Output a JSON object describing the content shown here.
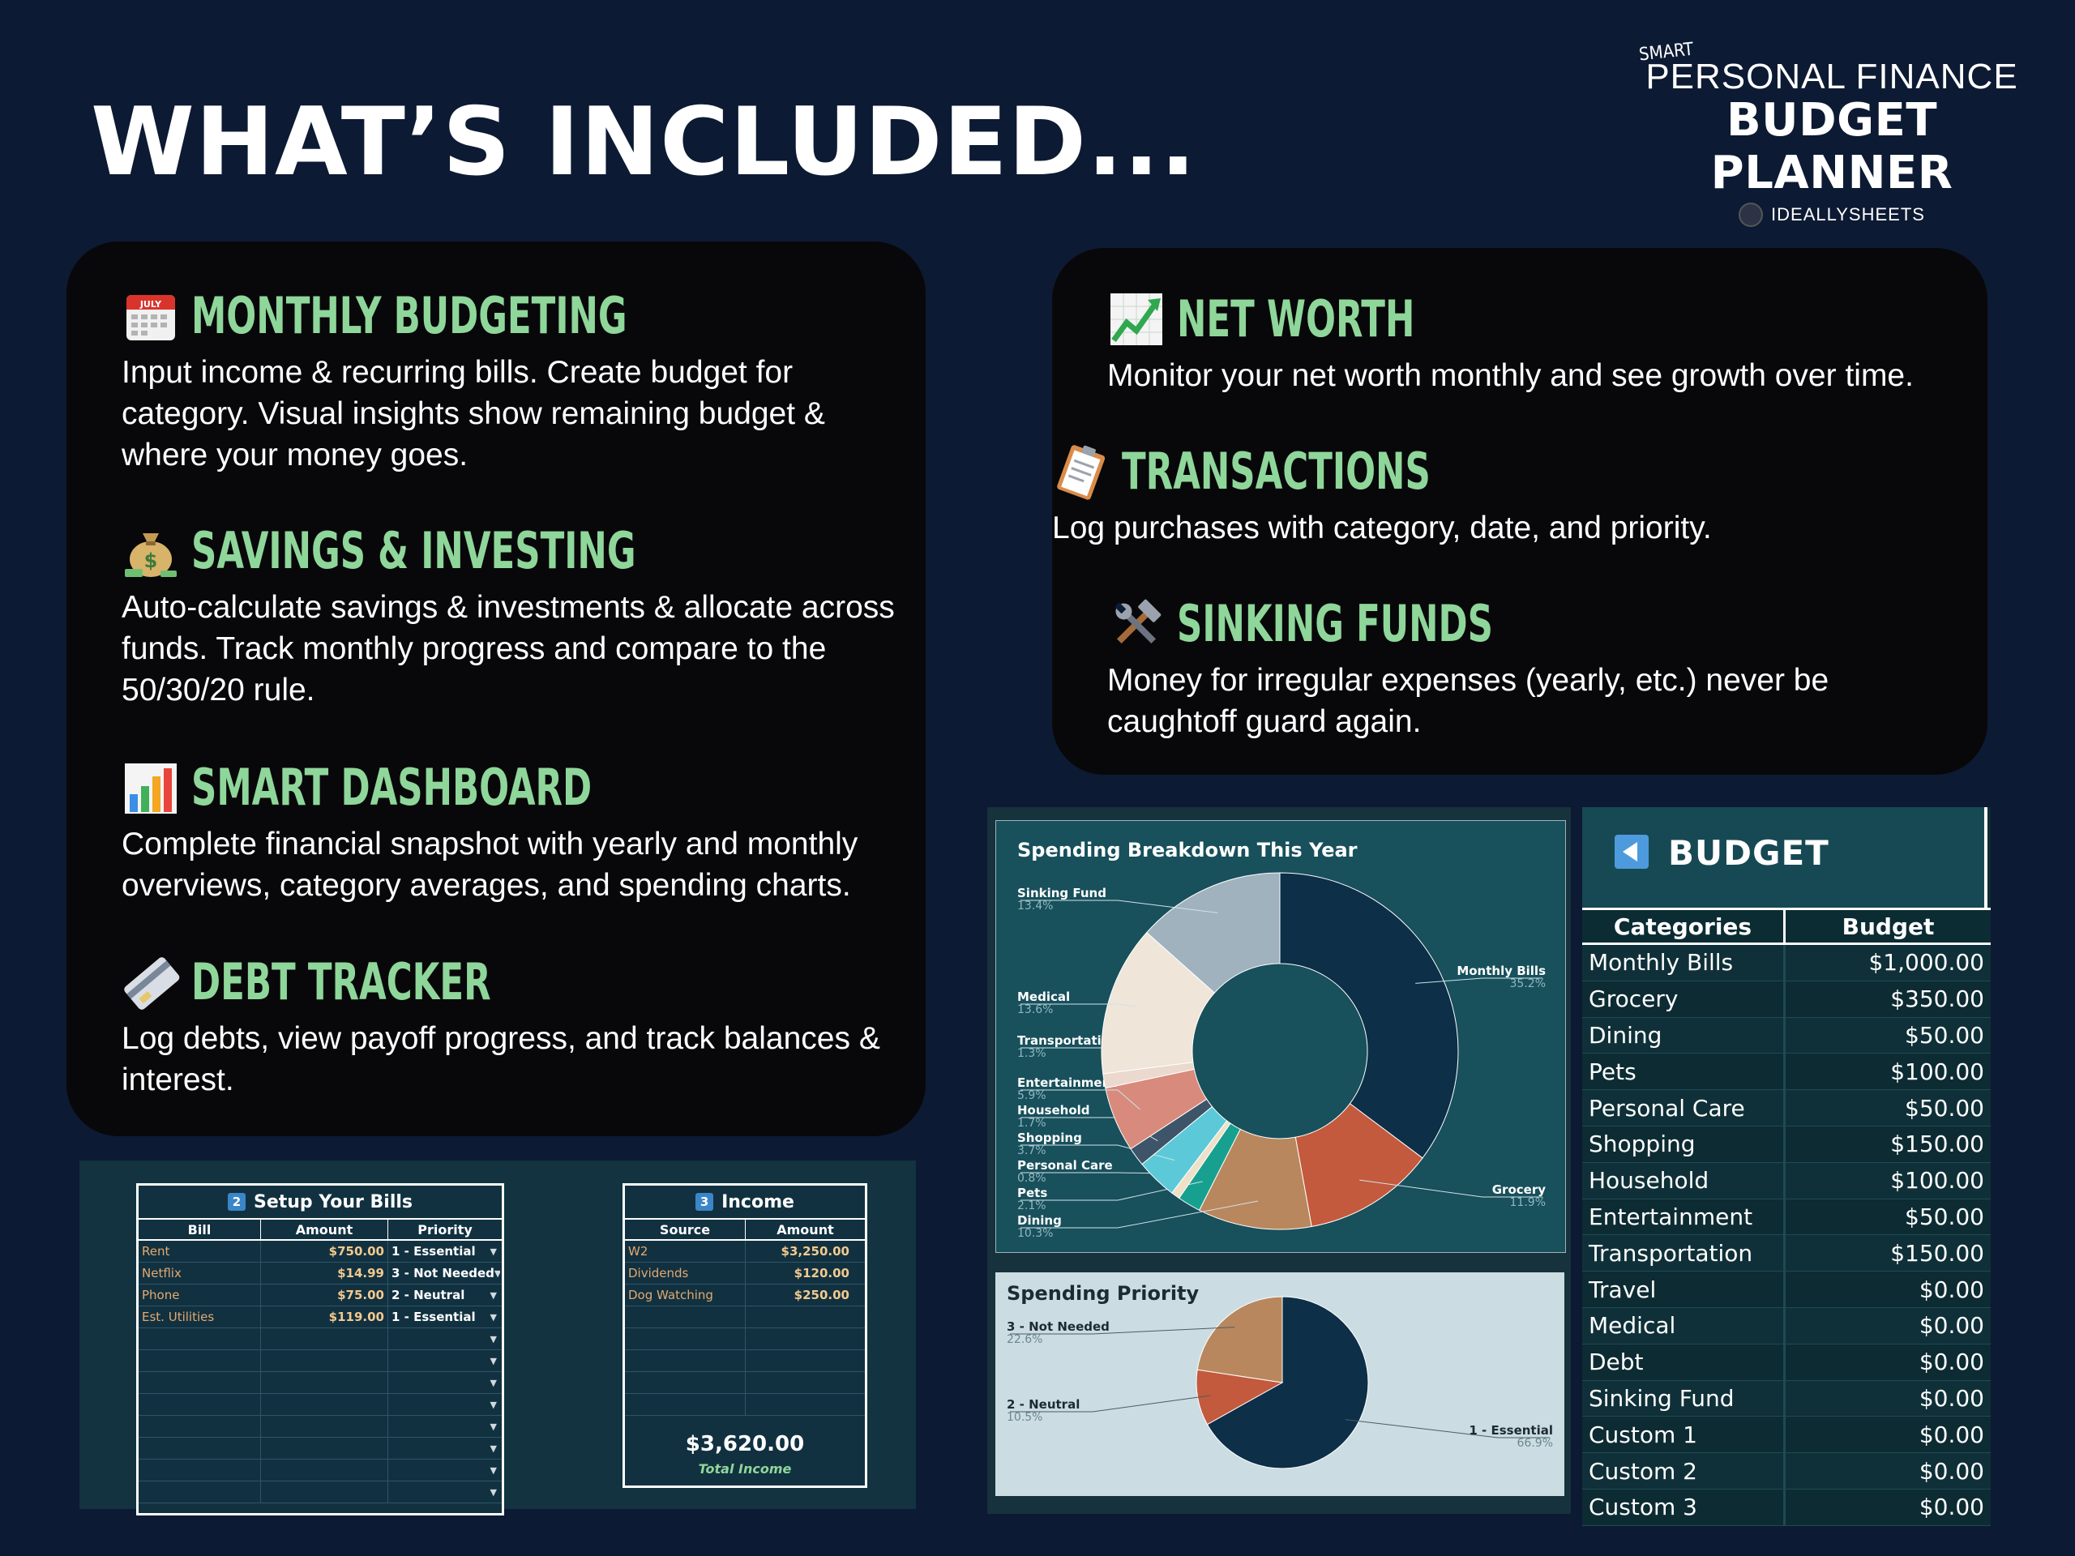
{
  "header": {
    "title": "WHAT’S INCLUDED...",
    "brand": {
      "smart": "SMART",
      "line1": "PERSONAL FINANCE",
      "line2": "BUDGET PLANNER",
      "maker": "IDEALLYSHEETS"
    }
  },
  "features_left": [
    {
      "icon": "calendar-icon",
      "title": "MONTHLY BUDGETING",
      "desc": "Input income & recurring bills. Create budget for category. Visual insights show remaining budget & where your money goes."
    },
    {
      "icon": "money-bag-icon",
      "title": "SAVINGS & INVESTING",
      "desc": "Auto-calculate savings & investments & allocate across funds. Track monthly progress and compare to the 50/30/20 rule."
    },
    {
      "icon": "bar-chart-icon",
      "title": "SMART DASHBOARD",
      "desc": "Complete financial snapshot with yearly and monthly overviews, category averages, and spending charts."
    },
    {
      "icon": "credit-card-icon",
      "title": "DEBT TRACKER",
      "desc": "Log debts, view payoff progress, and track balances & interest."
    }
  ],
  "features_right": [
    {
      "icon": "trend-up-icon",
      "title": "NET WORTH",
      "desc": "Monitor your net worth monthly and see growth over time."
    },
    {
      "icon": "clipboard-icon",
      "title": "TRANSACTIONS",
      "desc": "Log purchases with category, date, and priority."
    },
    {
      "icon": "tools-icon",
      "title": "SINKING FUNDS",
      "desc": "Money for irregular expenses (yearly, etc.) never be caughtoff guard again."
    }
  ],
  "bills": {
    "badge": "2",
    "title": "Setup Your Bills",
    "columns": [
      "Bill",
      "Amount",
      "Priority"
    ],
    "rows": [
      {
        "bill": "Rent",
        "amount": "$750.00",
        "priority": "1 - Essential"
      },
      {
        "bill": "Netflix",
        "amount": "$14.99",
        "priority": "3 - Not Needed"
      },
      {
        "bill": "Phone",
        "amount": "$75.00",
        "priority": "2 - Neutral"
      },
      {
        "bill": "Est. Utilities",
        "amount": "$119.00",
        "priority": "1 - Essential"
      }
    ],
    "empty_rows": 8
  },
  "income": {
    "badge": "3",
    "title": "Income",
    "columns": [
      "Source",
      "Amount"
    ],
    "rows": [
      {
        "source": "W2",
        "amount": "$3,250.00"
      },
      {
        "source": "Dividends",
        "amount": "$120.00"
      },
      {
        "source": "Dog Watching",
        "amount": "$250.00"
      }
    ],
    "total": "$3,620.00",
    "total_label": "Total Income"
  },
  "chart_data": [
    {
      "type": "pie",
      "title": "Spending Breakdown This Year",
      "donut": true,
      "slices": [
        {
          "label": "Monthly Bills",
          "pct": "35.2%",
          "value": 35.2,
          "color": "#0d2f48"
        },
        {
          "label": "Grocery",
          "pct": "11.9%",
          "value": 11.9,
          "color": "#c35a3d"
        },
        {
          "label": "Dining",
          "pct": "10.3%",
          "value": 10.3,
          "color": "#b9875e"
        },
        {
          "label": "Pets",
          "pct": "2.1%",
          "value": 2.1,
          "color": "#17a08f"
        },
        {
          "label": "Personal Care",
          "pct": "0.8%",
          "value": 0.8,
          "color": "#efe0c8"
        },
        {
          "label": "Shopping",
          "pct": "3.7%",
          "value": 3.7,
          "color": "#5bc9d8"
        },
        {
          "label": "Household",
          "pct": "1.7%",
          "value": 1.7,
          "color": "#3e5468"
        },
        {
          "label": "Entertainment",
          "pct": "5.9%",
          "value": 5.9,
          "color": "#d88a7c"
        },
        {
          "label": "Transportati...",
          "pct": "1.3%",
          "value": 1.3,
          "color": "#ead9cc"
        },
        {
          "label": "Medical",
          "pct": "13.6%",
          "value": 13.6,
          "color": "#efe5d8"
        },
        {
          "label": "Sinking Fund",
          "pct": "13.4%",
          "value": 13.4,
          "color": "#9fb2bd"
        }
      ]
    },
    {
      "type": "pie",
      "title": "Spending Priority",
      "slices": [
        {
          "label": "1 - Essential",
          "pct": "66.9%",
          "value": 66.9,
          "color": "#0d2f48"
        },
        {
          "label": "2 - Neutral",
          "pct": "10.5%",
          "value": 10.5,
          "color": "#c35a3d"
        },
        {
          "label": "3 - Not Needed",
          "pct": "22.6%",
          "value": 22.6,
          "color": "#b9875e"
        }
      ]
    }
  ],
  "budget": {
    "title": "BUDGET",
    "columns": [
      "Categories",
      "Budget"
    ],
    "rows": [
      {
        "category": "Monthly Bills",
        "budget": "$1,000.00"
      },
      {
        "category": "Grocery",
        "budget": "$350.00"
      },
      {
        "category": "Dining",
        "budget": "$50.00"
      },
      {
        "category": "Pets",
        "budget": "$100.00"
      },
      {
        "category": "Personal Care",
        "budget": "$50.00"
      },
      {
        "category": "Shopping",
        "budget": "$150.00"
      },
      {
        "category": "Household",
        "budget": "$100.00"
      },
      {
        "category": "Entertainment",
        "budget": "$50.00"
      },
      {
        "category": "Transportation",
        "budget": "$150.00"
      },
      {
        "category": "Travel",
        "budget": "$0.00"
      },
      {
        "category": "Medical",
        "budget": "$0.00"
      },
      {
        "category": "Debt",
        "budget": "$0.00"
      },
      {
        "category": "Sinking Fund",
        "budget": "$0.00"
      },
      {
        "category": "Custom 1",
        "budget": "$0.00"
      },
      {
        "category": "Custom 2",
        "budget": "$0.00"
      },
      {
        "category": "Custom 3",
        "budget": "$0.00"
      }
    ]
  }
}
